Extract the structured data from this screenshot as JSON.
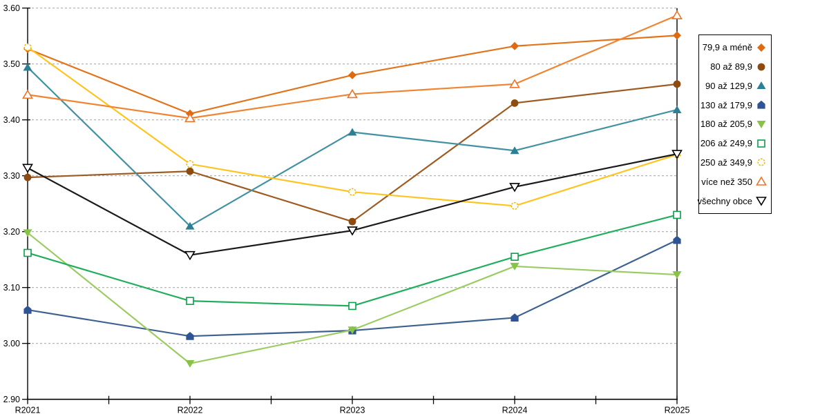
{
  "chart_data": {
    "type": "line",
    "title": "",
    "xlabel": "",
    "ylabel": "",
    "categories": [
      "R2021",
      "R2022",
      "R2023",
      "R2024",
      "R2025"
    ],
    "ylim": [
      2.9,
      3.6
    ],
    "ytick_step": 0.1,
    "ytick_decimals": 2,
    "grid": "horizontal-dashed",
    "grid_color": "#ABABAB",
    "axis_color": "#000000",
    "background": "#FFFFFF",
    "legend_position": "right",
    "series": [
      {
        "name": "79,9 a méně",
        "color": "#E2741B",
        "marker_color": "#E06A12",
        "marker": "diamond",
        "marker_style": "filled",
        "values": [
          3.527,
          3.411,
          3.48,
          3.532,
          3.551
        ]
      },
      {
        "name": "80 až 89,9",
        "color": "#9E5B21",
        "marker_color": "#8E4B10",
        "marker": "circle",
        "marker_style": "filled",
        "values": [
          3.297,
          3.308,
          3.218,
          3.43,
          3.464
        ]
      },
      {
        "name": "90 až 129,9",
        "color": "#4191A3",
        "marker_color": "#2C7F95",
        "marker": "triangle-up",
        "marker_style": "filled",
        "values": [
          3.494,
          3.21,
          3.378,
          3.345,
          3.418
        ]
      },
      {
        "name": "130 až 179,9",
        "color": "#3D618F",
        "marker_color": "#2F5496",
        "marker": "pentagon",
        "marker_style": "filled",
        "values": [
          3.06,
          3.013,
          3.023,
          3.046,
          3.185
        ]
      },
      {
        "name": "180 až 205,9",
        "color": "#9BCB63",
        "marker_color": "#86C347",
        "marker": "triangle-down",
        "marker_style": "filled",
        "values": [
          3.198,
          2.964,
          3.024,
          3.138,
          3.123
        ]
      },
      {
        "name": "206 až 249,9",
        "color": "#21AE5C",
        "marker_color": "#0D9D4B",
        "marker": "square",
        "marker_style": "open",
        "values": [
          3.162,
          3.076,
          3.067,
          3.155,
          3.23
        ]
      },
      {
        "name": "250 až 349,9",
        "color": "#FFC41F",
        "marker_color": "#EDB90E",
        "marker": "circle-dashed",
        "marker_style": "open",
        "values": [
          3.53,
          3.321,
          3.271,
          3.246,
          3.338
        ]
      },
      {
        "name": "více než 350",
        "color": "#F08432",
        "marker_color": "#ED7428",
        "marker": "triangle-up",
        "marker_style": "open",
        "values": [
          3.445,
          3.403,
          3.446,
          3.464,
          3.587
        ]
      },
      {
        "name": "všechny obce",
        "color": "#1A1A1A",
        "marker_color": "#000000",
        "marker": "triangle-down",
        "marker_style": "open",
        "values": [
          3.314,
          3.158,
          3.202,
          3.28,
          3.339
        ]
      }
    ]
  }
}
